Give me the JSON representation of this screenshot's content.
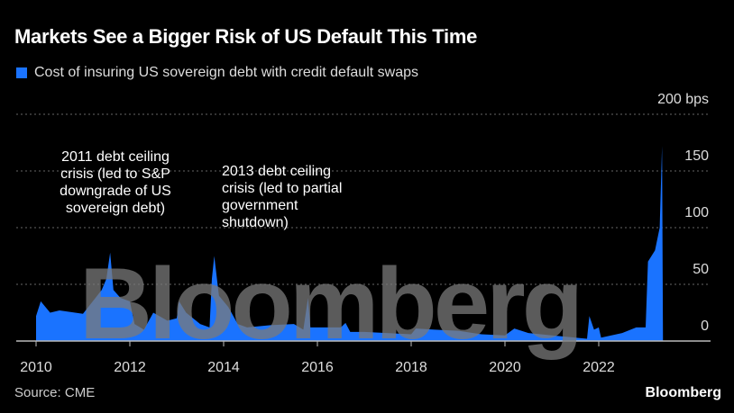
{
  "title": "Markets See a Bigger Risk of US Default This Time",
  "source": "Source: CME",
  "brand": "Bloomberg",
  "watermark": "Bloomberg",
  "colors": {
    "series": "#1a73ff",
    "grid": "#666666"
  },
  "chart_data": {
    "type": "area",
    "title": "Markets See a Bigger Risk of US Default This Time",
    "legend": [
      "Cost of insuring US sovereign debt with credit default swaps"
    ],
    "ylabel": "bps",
    "ylim": [
      0,
      200
    ],
    "xlim": [
      2009.6,
      2024.4
    ],
    "yticks": [
      {
        "v": 0,
        "label": "0"
      },
      {
        "v": 50,
        "label": "50"
      },
      {
        "v": 100,
        "label": "100"
      },
      {
        "v": 150,
        "label": "150"
      },
      {
        "v": 200,
        "label": "200 bps"
      }
    ],
    "xticks": [
      "2010",
      "2012",
      "2014",
      "2016",
      "2018",
      "2020",
      "2022"
    ],
    "annotations": [
      {
        "text": "2011 debt ceiling crisis (led to S&P downgrade of US sovereign debt)",
        "x": 2011.58
      },
      {
        "text": "2013 debt ceiling crisis (led to partial government shutdown)",
        "x": 2013.8
      }
    ],
    "x": [
      2010.0,
      2010.1,
      2010.3,
      2010.5,
      2011.0,
      2011.4,
      2011.5,
      2011.58,
      2011.65,
      2011.8,
      2012.0,
      2012.1,
      2012.3,
      2012.5,
      2012.8,
      2013.0,
      2013.05,
      2013.2,
      2013.5,
      2013.7,
      2013.75,
      2013.8,
      2013.9,
      2014.1,
      2014.3,
      2014.5,
      2015.0,
      2015.5,
      2015.7,
      2015.8,
      2015.85,
      2016.5,
      2016.6,
      2016.7,
      2017.0,
      2018.0,
      2018.1,
      2018.5,
      2019.0,
      2019.5,
      2020.0,
      2020.2,
      2020.5,
      2021.0,
      2021.5,
      2021.75,
      2021.8,
      2021.9,
      2022.0,
      2022.05,
      2022.5,
      2022.8,
      2023.0,
      2023.05,
      2023.2,
      2023.3,
      2023.35,
      2023.37
    ],
    "values": [
      22,
      35,
      25,
      27,
      24,
      45,
      55,
      78,
      45,
      38,
      35,
      15,
      10,
      25,
      18,
      20,
      35,
      25,
      15,
      12,
      55,
      75,
      40,
      30,
      15,
      12,
      14,
      15,
      10,
      38,
      12,
      12,
      16,
      8,
      8,
      6,
      11,
      10,
      9,
      6,
      5,
      11,
      7,
      5,
      3,
      2,
      22,
      10,
      12,
      3,
      7,
      12,
      12,
      70,
      80,
      100,
      172,
      0
    ]
  }
}
